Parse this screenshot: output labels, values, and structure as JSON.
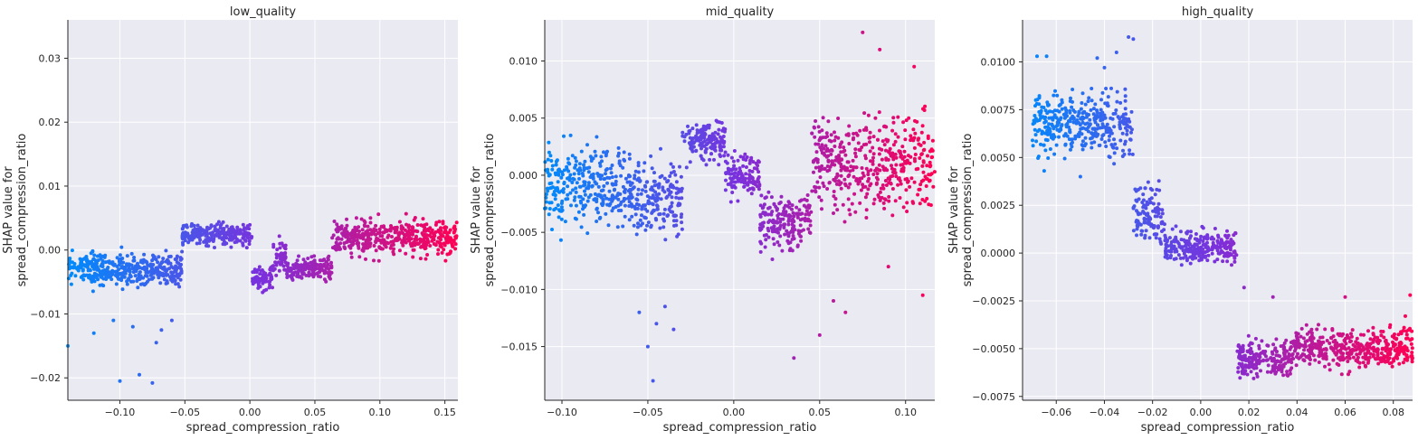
{
  "chart_data": [
    {
      "type": "scatter",
      "title": "low_quality",
      "xlabel": "spread_compression_ratio",
      "ylabel": [
        "SHAP value for",
        "spread_compression_ratio"
      ],
      "xlim": [
        -0.14,
        0.16
      ],
      "ylim": [
        -0.0235,
        0.036
      ],
      "xticks": [
        -0.1,
        -0.05,
        0.0,
        0.05,
        0.1,
        0.15
      ],
      "xtick_labels": [
        "−0.10",
        "−0.05",
        "0.00",
        "0.05",
        "0.10",
        "0.15"
      ],
      "yticks": [
        -0.02,
        -0.01,
        0.0,
        0.01,
        0.02,
        0.03
      ],
      "ytick_labels": [
        "−0.02",
        "−0.01",
        "0.00",
        "0.01",
        "0.02",
        "0.03"
      ],
      "grid": true,
      "color_scale": [
        "#008bfb",
        "#ff0052"
      ],
      "segments": [
        {
          "x": [
            -0.14,
            -0.052
          ],
          "y": -0.003,
          "spread": 0.0045
        },
        {
          "x": [
            -0.052,
            0.002
          ],
          "y": 0.0025,
          "spread": 0.0028
        },
        {
          "x": [
            0.002,
            0.018
          ],
          "y": -0.0045,
          "spread": 0.0035
        },
        {
          "x": [
            0.018,
            0.028
          ],
          "y": -0.001,
          "spread": 0.004
        },
        {
          "x": [
            0.028,
            0.063
          ],
          "y": -0.003,
          "spread": 0.003
        },
        {
          "x": [
            0.063,
            0.16
          ],
          "y": 0.002,
          "spread": 0.0045
        }
      ],
      "outliers": [
        [
          -0.14,
          -0.015
        ],
        [
          -0.1,
          -0.0205
        ],
        [
          -0.085,
          -0.0195
        ],
        [
          -0.075,
          -0.0208
        ],
        [
          -0.072,
          -0.0145
        ],
        [
          -0.068,
          -0.0125
        ],
        [
          -0.06,
          -0.011
        ],
        [
          -0.12,
          -0.013
        ],
        [
          -0.105,
          -0.011
        ],
        [
          -0.09,
          -0.012
        ]
      ]
    },
    {
      "type": "scatter",
      "title": "mid_quality",
      "xlabel": "spread_compression_ratio",
      "ylabel": [
        "SHAP value for",
        "spread_compression_ratio"
      ],
      "xlim": [
        -0.11,
        0.117
      ],
      "ylim": [
        -0.0197,
        0.0136
      ],
      "xticks": [
        -0.1,
        -0.05,
        0.0,
        0.05,
        0.1
      ],
      "xtick_labels": [
        "−0.10",
        "−0.05",
        "0.00",
        "0.05",
        "0.10"
      ],
      "yticks": [
        -0.015,
        -0.01,
        -0.005,
        0.0,
        0.005,
        0.01
      ],
      "ytick_labels": [
        "−0.015",
        "−0.010",
        "−0.005",
        "0.000",
        "0.005",
        "0.010"
      ],
      "grid": true,
      "color_scale": [
        "#008bfb",
        "#ff0052"
      ],
      "segments": [
        {
          "x": [
            -0.11,
            -0.06
          ],
          "y": -0.001,
          "spread": 0.0055
        },
        {
          "x": [
            -0.06,
            -0.03
          ],
          "y": -0.002,
          "spread": 0.0055
        },
        {
          "x": [
            -0.03,
            -0.005
          ],
          "y": 0.003,
          "spread": 0.0028
        },
        {
          "x": [
            -0.005,
            0.015
          ],
          "y": 0.0,
          "spread": 0.003
        },
        {
          "x": [
            0.015,
            0.045
          ],
          "y": -0.004,
          "spread": 0.004
        },
        {
          "x": [
            0.045,
            0.117
          ],
          "y": 0.001,
          "spread": 0.0065
        }
      ],
      "outliers": [
        [
          -0.05,
          -0.015
        ],
        [
          -0.045,
          -0.013
        ],
        [
          -0.04,
          -0.0115
        ],
        [
          -0.055,
          -0.012
        ],
        [
          -0.035,
          -0.0135
        ],
        [
          -0.047,
          -0.018
        ],
        [
          0.035,
          -0.016
        ],
        [
          0.05,
          -0.014
        ],
        [
          0.075,
          0.0125
        ],
        [
          0.085,
          0.011
        ],
        [
          0.105,
          0.0095
        ],
        [
          0.065,
          -0.012
        ],
        [
          0.058,
          -0.011
        ],
        [
          0.09,
          -0.008
        ],
        [
          0.11,
          -0.0105
        ]
      ]
    },
    {
      "type": "scatter",
      "title": "high_quality",
      "xlabel": "spread_compression_ratio",
      "ylabel": [
        "SHAP value for",
        "spread_compression_ratio"
      ],
      "xlim": [
        -0.074,
        0.088
      ],
      "ylim": [
        -0.0077,
        0.0122
      ],
      "xticks": [
        -0.06,
        -0.04,
        -0.02,
        0.0,
        0.02,
        0.04,
        0.06,
        0.08
      ],
      "xtick_labels": [
        "−0.06",
        "−0.04",
        "−0.02",
        "0.00",
        "0.02",
        "0.04",
        "0.06",
        "0.08"
      ],
      "yticks": [
        -0.0075,
        -0.005,
        -0.0025,
        0.0,
        0.0025,
        0.005,
        0.0075,
        0.01
      ],
      "ytick_labels": [
        "−0.0075",
        "−0.0050",
        "−0.0025",
        "0.0000",
        "0.0025",
        "0.0050",
        "0.0075",
        "0.0100"
      ],
      "grid": true,
      "color_scale": [
        "#008bfb",
        "#ff0052"
      ],
      "segments": [
        {
          "x": [
            -0.07,
            -0.05
          ],
          "y": 0.0068,
          "spread": 0.0028
        },
        {
          "x": [
            -0.05,
            -0.028
          ],
          "y": 0.0068,
          "spread": 0.0028
        },
        {
          "x": [
            -0.028,
            -0.015
          ],
          "y": 0.002,
          "spread": 0.0025
        },
        {
          "x": [
            -0.015,
            0.015
          ],
          "y": 0.0003,
          "spread": 0.0014
        },
        {
          "x": [
            0.015,
            0.038
          ],
          "y": -0.0055,
          "spread": 0.0016
        },
        {
          "x": [
            0.038,
            0.088
          ],
          "y": -0.005,
          "spread": 0.0016
        }
      ],
      "outliers": [
        [
          -0.068,
          0.0103
        ],
        [
          -0.064,
          0.0103
        ],
        [
          -0.03,
          0.0113
        ],
        [
          -0.028,
          0.0112
        ],
        [
          -0.035,
          0.0105
        ],
        [
          -0.043,
          0.0102
        ],
        [
          -0.04,
          0.0097
        ],
        [
          -0.065,
          0.0043
        ],
        [
          -0.05,
          0.004
        ],
        [
          0.018,
          -0.0018
        ],
        [
          0.03,
          -0.0023
        ],
        [
          0.06,
          -0.0023
        ],
        [
          0.085,
          -0.0033
        ],
        [
          0.087,
          -0.0022
        ],
        [
          0.075,
          -0.0043
        ]
      ]
    }
  ]
}
